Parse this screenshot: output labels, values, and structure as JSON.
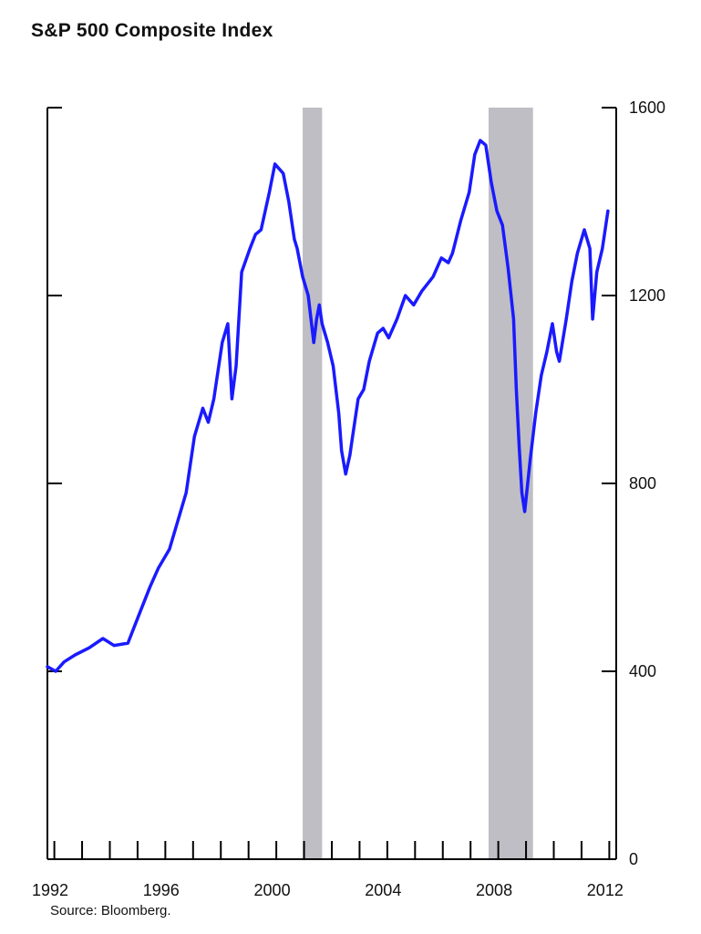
{
  "title": "S&P 500 Composite Index",
  "source": "Source: Bloomberg.",
  "colors": {
    "line": "#1a1aff",
    "recession": "#bebec4",
    "axis": "#000000"
  },
  "chart_data": {
    "type": "line",
    "title": "S&P 500 Composite Index",
    "xlabel": "",
    "ylabel": "",
    "xlim": [
      1992,
      2012.5
    ],
    "ylim": [
      0,
      1600
    ],
    "x_tick_labels": [
      "1992",
      "1996",
      "2000",
      "2004",
      "2008",
      "2012"
    ],
    "y_tick_labels": [
      "0",
      "400",
      "800",
      "1200",
      "1600"
    ],
    "y_axis_side": "right",
    "grid": false,
    "legend": "none",
    "shaded_regions": [
      {
        "start": 2001.2,
        "end": 2001.9
      },
      {
        "start": 2007.9,
        "end": 2009.5
      }
    ],
    "series": [
      {
        "x": [
          1992.0,
          1992.3,
          1992.6,
          1993.0,
          1993.5,
          1994.0,
          1994.4,
          1994.9,
          1995.3,
          1995.7,
          1996.0,
          1996.4,
          1996.8,
          1997.0,
          1997.3,
          1997.6,
          1997.8,
          1998.0,
          1998.3,
          1998.5,
          1998.65,
          1998.8,
          1999.0,
          1999.3,
          1999.5,
          1999.7,
          2000.0,
          2000.2,
          2000.5,
          2000.7,
          2000.9,
          2001.0,
          2001.2,
          2001.4,
          2001.6,
          2001.7,
          2001.8,
          2001.9,
          2002.1,
          2002.3,
          2002.5,
          2002.6,
          2002.75,
          2002.9,
          2003.0,
          2003.2,
          2003.4,
          2003.6,
          2003.9,
          2004.1,
          2004.3,
          2004.6,
          2004.9,
          2005.2,
          2005.5,
          2005.9,
          2006.2,
          2006.45,
          2006.6,
          2006.9,
          2007.2,
          2007.4,
          2007.6,
          2007.8,
          2008.0,
          2008.2,
          2008.4,
          2008.6,
          2008.8,
          2008.9,
          2009.0,
          2009.1,
          2009.2,
          2009.4,
          2009.6,
          2009.8,
          2010.0,
          2010.2,
          2010.35,
          2010.45,
          2010.7,
          2010.9,
          2011.1,
          2011.35,
          2011.55,
          2011.65,
          2011.8,
          2012.0,
          2012.2
        ],
        "values": [
          410,
          400,
          420,
          435,
          450,
          470,
          455,
          460,
          520,
          580,
          620,
          660,
          740,
          780,
          900,
          960,
          930,
          980,
          1100,
          1140,
          980,
          1050,
          1250,
          1300,
          1330,
          1340,
          1420,
          1480,
          1460,
          1400,
          1320,
          1300,
          1240,
          1200,
          1100,
          1150,
          1180,
          1140,
          1100,
          1050,
          950,
          870,
          820,
          860,
          900,
          980,
          1000,
          1060,
          1120,
          1130,
          1110,
          1150,
          1200,
          1180,
          1210,
          1240,
          1280,
          1270,
          1290,
          1360,
          1420,
          1500,
          1530,
          1520,
          1440,
          1380,
          1350,
          1260,
          1150,
          1000,
          880,
          780,
          740,
          850,
          950,
          1030,
          1080,
          1140,
          1080,
          1060,
          1150,
          1230,
          1290,
          1340,
          1300,
          1150,
          1250,
          1300,
          1380
        ]
      }
    ]
  }
}
